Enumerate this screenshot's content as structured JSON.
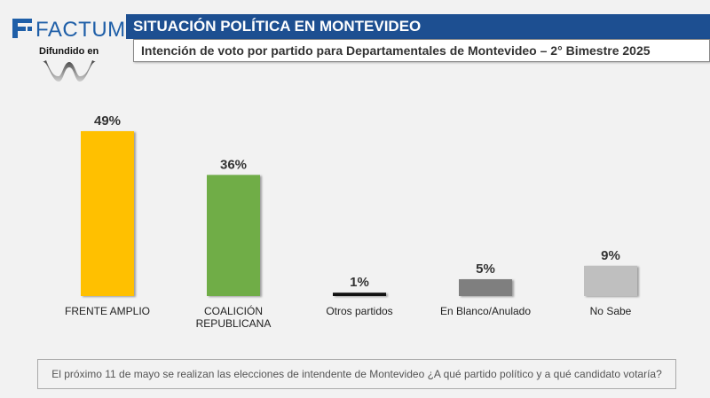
{
  "brand": {
    "name": "FACTUM",
    "disseminated_label": "Difundido en",
    "logo_icon": "factum-f-icon",
    "media_logo_icon": "media-wave-logo",
    "brand_color": "#1f5fa8"
  },
  "header": {
    "title": "SITUACIÓN POLÍTICA EN MONTEVIDEO",
    "subtitle": "Intención de voto por partido para Departamentales de Montevideo – 2° Bimestre 2025",
    "title_bg": "#1d4f91"
  },
  "footer": {
    "note": "El próximo 11 de mayo se realizan las elecciones de intendente de Montevideo ¿A qué partido político y a qué candidato votaría?"
  },
  "chart_data": {
    "type": "bar",
    "categories": [
      "FRENTE AMPLIO",
      "COALICIÓN REPUBLICANA",
      "Otros partidos",
      "En Blanco/Anulado",
      "No Sabe"
    ],
    "category_lines": [
      [
        "FRENTE AMPLIO"
      ],
      [
        "COALICIÓN",
        "REPUBLICANA"
      ],
      [
        "Otros partidos"
      ],
      [
        "En Blanco/Anulado"
      ],
      [
        "No Sabe"
      ]
    ],
    "values": [
      49,
      36,
      1,
      5,
      9
    ],
    "value_labels": [
      "49%",
      "36%",
      "1%",
      "5%",
      "9%"
    ],
    "colors": [
      "#ffc000",
      "#70ad47",
      "#111111",
      "#7f7f7f",
      "#bfbfbf"
    ],
    "ylim": [
      0,
      55
    ],
    "grid": false,
    "title": "",
    "xlabel": "",
    "ylabel": ""
  }
}
